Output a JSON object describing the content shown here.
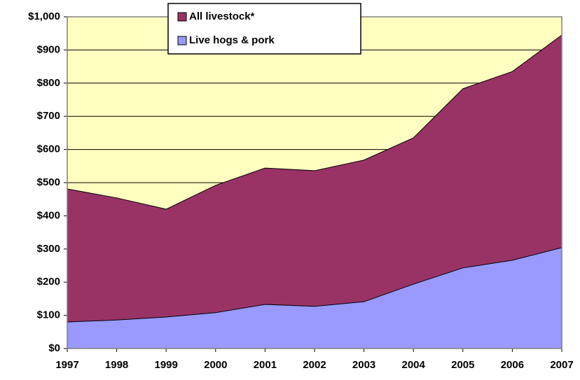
{
  "chart_data": {
    "type": "area",
    "categories": [
      "1997",
      "1998",
      "1999",
      "2000",
      "2001",
      "2002",
      "2003",
      "2004",
      "2005",
      "2006",
      "2007"
    ],
    "series": [
      {
        "name": "All livestock*",
        "color": "#993366",
        "values": [
          481,
          454,
          420,
          492,
          544,
          536,
          568,
          635,
          783,
          835,
          945
        ]
      },
      {
        "name": "Live hogs & pork",
        "color": "#9999ff",
        "values": [
          80,
          86,
          95,
          108,
          133,
          127,
          141,
          194,
          243,
          266,
          304
        ]
      }
    ],
    "ylim": [
      0,
      1000
    ],
    "yticks": [
      {
        "value": 0,
        "label": "$0"
      },
      {
        "value": 100,
        "label": "$100"
      },
      {
        "value": 200,
        "label": "$200"
      },
      {
        "value": 300,
        "label": "$300"
      },
      {
        "value": 400,
        "label": "$400"
      },
      {
        "value": 500,
        "label": "$500"
      },
      {
        "value": 600,
        "label": "$600"
      },
      {
        "value": 700,
        "label": "$700"
      },
      {
        "value": 800,
        "label": "$800"
      },
      {
        "value": 900,
        "label": "$900"
      },
      {
        "value": 1000,
        "label": "$1,000"
      }
    ],
    "grid": true,
    "background": "#ffffc0",
    "legend": "top"
  }
}
